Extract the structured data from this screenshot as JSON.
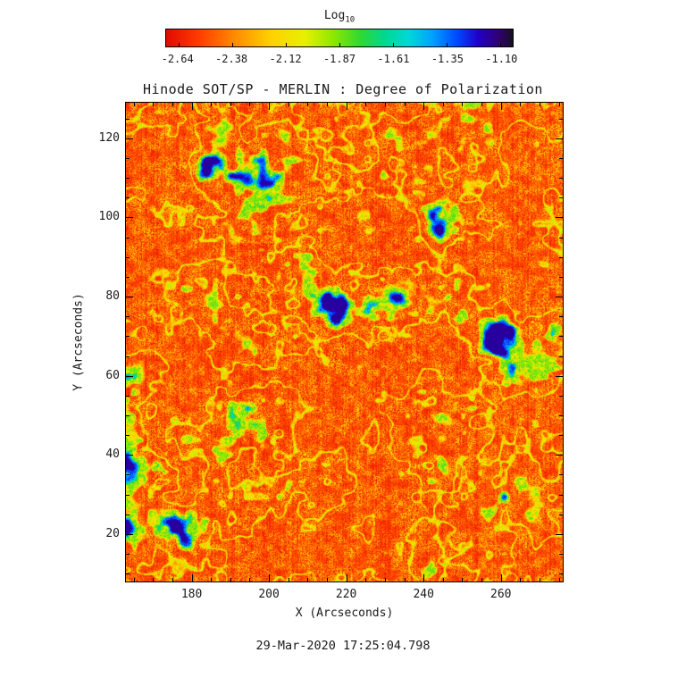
{
  "timestamp": "29-Mar-2020 17:25:04.798",
  "colors": {
    "background": "#ffffff",
    "axis": "#000000",
    "text": "#1a1a1a"
  },
  "chart_data": {
    "type": "heatmap",
    "title": "Hinode SOT/SP - MERLIN : Degree of Polarization",
    "xlabel": "X (Arcseconds)",
    "ylabel": "Y (Arcseconds)",
    "xlim": [
      163,
      276
    ],
    "ylim": [
      8,
      129
    ],
    "xticks": [
      180,
      200,
      220,
      240,
      260
    ],
    "yticks": [
      20,
      40,
      60,
      80,
      100,
      120
    ],
    "x_minor_step": 5,
    "y_minor_step": 5,
    "grid": false,
    "legend": "none",
    "colorbar": {
      "label": "Log",
      "label_sub": "10",
      "position": "top",
      "ticks": [
        -2.64,
        -2.38,
        -2.12,
        -1.87,
        -1.61,
        -1.35,
        -1.1
      ],
      "range": [
        -2.64,
        -1.1
      ]
    },
    "colormap_stops": [
      {
        "t": 0.0,
        "c": "#e00a00"
      },
      {
        "t": 0.1,
        "c": "#ff4000"
      },
      {
        "t": 0.2,
        "c": "#ff8c00"
      },
      {
        "t": 0.3,
        "c": "#ffd000"
      },
      {
        "t": 0.4,
        "c": "#e8f000"
      },
      {
        "t": 0.48,
        "c": "#90e800"
      },
      {
        "t": 0.56,
        "c": "#30d830"
      },
      {
        "t": 0.63,
        "c": "#00d890"
      },
      {
        "t": 0.7,
        "c": "#00d8d8"
      },
      {
        "t": 0.77,
        "c": "#00a0ff"
      },
      {
        "t": 0.84,
        "c": "#0048ff"
      },
      {
        "t": 0.9,
        "c": "#2000c8"
      },
      {
        "t": 0.96,
        "c": "#300070"
      },
      {
        "t": 1.0,
        "c": "#181020"
      }
    ],
    "value_description": "Log10 degree of polarization map: field dominated by low values (red/orange) with a speckled network of enhanced lanes (yellow/green) and localized strong-polarization patches (cyan/blue/dark).",
    "notable_features": [
      {
        "x": 177,
        "y": 22,
        "radius": 5.0,
        "strength": 0.5
      },
      {
        "x": 183,
        "y": 113,
        "radius": 3.0,
        "strength": 0.42
      },
      {
        "x": 214,
        "y": 77,
        "radius": 3.5,
        "strength": 0.45
      },
      {
        "x": 258,
        "y": 71,
        "radius": 4.5,
        "strength": 0.48
      },
      {
        "x": 244,
        "y": 97,
        "radius": 3.0,
        "strength": 0.4
      },
      {
        "x": 187,
        "y": 66,
        "radius": 2.5,
        "strength": 0.35
      },
      {
        "x": 247,
        "y": 102,
        "radius": 3.0,
        "strength": 0.35
      },
      {
        "x": 276,
        "y": 74,
        "radius": 3.0,
        "strength": 0.4
      },
      {
        "x": 205,
        "y": 120,
        "radius": 2.5,
        "strength": 0.3
      },
      {
        "x": 240,
        "y": 59,
        "radius": 2.5,
        "strength": 0.32
      }
    ]
  }
}
